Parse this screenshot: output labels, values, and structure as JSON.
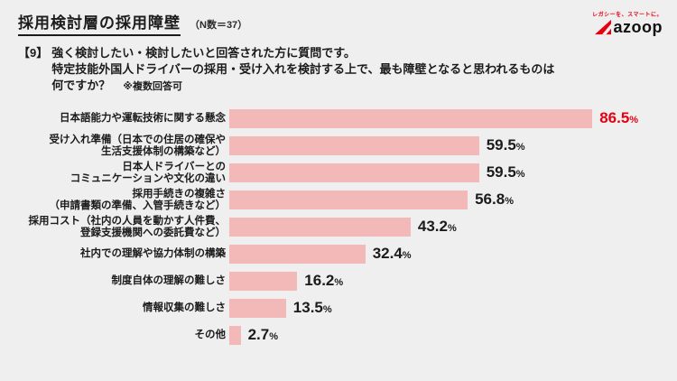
{
  "header": {
    "title": "採用検討層の採用障壁",
    "sample_size": "（N数＝37）",
    "logo": {
      "tagline": "レガシーを、スマートに。",
      "brand": "azoop"
    }
  },
  "question": {
    "marker": "【9】",
    "line1": "強く検討したい・検討したいと回答された方に質問です。",
    "line2": "特定技能外国人ドライバーの採用・受け入れを検討する上で、最も障壁となると思われるものは",
    "line3": "何ですか？",
    "note": "※複数回答可"
  },
  "chart_data": {
    "type": "bar",
    "orientation": "horizontal",
    "title": "採用検討層の採用障壁",
    "unit": "%",
    "xlim": [
      0,
      90
    ],
    "grid": false,
    "legend": false,
    "bar_color": "#f3b8b8",
    "accent_color": "#e60012",
    "categories": [
      "日本語能力や運転技術に関する懸念",
      "受け入れ準備（日本での住居の確保や\n生活支援体制の構築など）",
      "日本人ドライバーとの\nコミュニケーションや文化の違い",
      "採用手続きの複雑さ\n（申請書類の準備、入管手続きなど）",
      "採用コスト（社内の人員を動かす人件費、\n登録支援機関への委託費など）",
      "社内での理解や協力体制の構築",
      "制度自体の理解の難しさ",
      "情報収集の難しさ",
      "その他"
    ],
    "values": [
      86.5,
      59.5,
      59.5,
      56.8,
      43.2,
      32.4,
      16.2,
      13.5,
      2.7
    ],
    "value_labels": [
      "86.5",
      "59.5",
      "59.5",
      "56.8",
      "43.2",
      "32.4",
      "16.2",
      "13.5",
      "2.7"
    ]
  }
}
